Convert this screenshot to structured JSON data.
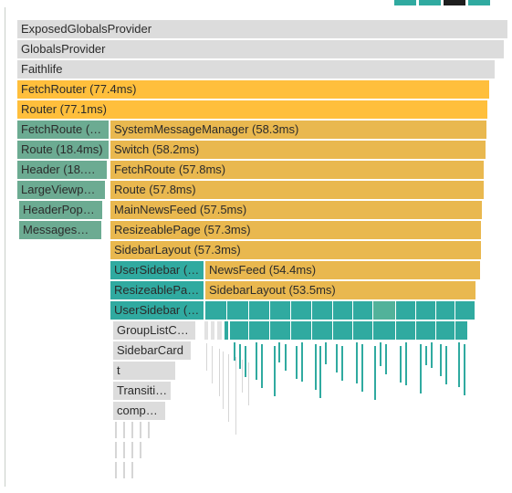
{
  "flamegraph": {
    "rows": [
      {
        "frames": [
          {
            "label": "ExposedGlobalsProvider"
          }
        ]
      },
      {
        "frames": [
          {
            "label": "GlobalsProvider"
          }
        ]
      },
      {
        "frames": [
          {
            "label": "Faithlife"
          }
        ]
      },
      {
        "frames": [
          {
            "label": "FetchRouter (77.4ms)"
          }
        ]
      },
      {
        "frames": [
          {
            "label": "Router (77.1ms)"
          }
        ]
      },
      {
        "frames": [
          {
            "label": "FetchRoute (…"
          },
          {
            "label": "SystemMessageManager (58.3ms)"
          }
        ]
      },
      {
        "frames": [
          {
            "label": "Route (18.4ms)"
          },
          {
            "label": "Switch (58.2ms)"
          }
        ]
      },
      {
        "frames": [
          {
            "label": "Header (18.…"
          },
          {
            "label": "FetchRoute (57.8ms)"
          }
        ]
      },
      {
        "frames": [
          {
            "label": "LargeViewp…"
          },
          {
            "label": "Route (57.8ms)"
          }
        ]
      },
      {
        "frames": [
          {
            "label": "HeaderPop…"
          },
          {
            "label": "MainNewsFeed (57.5ms)"
          }
        ]
      },
      {
        "frames": [
          {
            "label": "Messages…"
          },
          {
            "label": "ResizeablePage (57.3ms)"
          }
        ]
      },
      {
        "frames": [
          {
            "label": "SidebarLayout (57.3ms)"
          }
        ]
      },
      {
        "frames": [
          {
            "label": "UserSidebar (…"
          },
          {
            "label": "NewsFeed (54.4ms)"
          }
        ]
      },
      {
        "frames": [
          {
            "label": "ResizeablePa…"
          },
          {
            "label": "SidebarLayout (53.5ms)"
          }
        ]
      },
      {
        "frames": [
          {
            "label": "UserSidebar (…"
          }
        ]
      },
      {
        "frames": [
          {
            "label": "GroupListC…"
          }
        ]
      },
      {
        "frames": [
          {
            "label": "SidebarCard"
          }
        ]
      },
      {
        "frames": [
          {
            "label": "t"
          }
        ]
      },
      {
        "frames": [
          {
            "label": "Transiti…"
          }
        ]
      },
      {
        "frames": [
          {
            "label": "comp…"
          }
        ]
      }
    ]
  },
  "colors": {
    "grey": "#dcdcdc",
    "orange": "#ffbf3c",
    "gold": "#e9b84f",
    "sage": "#6cab92",
    "teal": "#30aaa0"
  }
}
